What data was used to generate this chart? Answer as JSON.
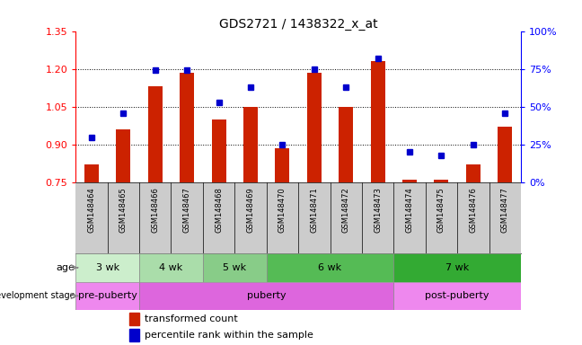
{
  "title": "GDS2721 / 1438322_x_at",
  "samples": [
    "GSM148464",
    "GSM148465",
    "GSM148466",
    "GSM148467",
    "GSM148468",
    "GSM148469",
    "GSM148470",
    "GSM148471",
    "GSM148472",
    "GSM148473",
    "GSM148474",
    "GSM148475",
    "GSM148476",
    "GSM148477"
  ],
  "bar_values": [
    0.822,
    0.962,
    1.13,
    1.185,
    1.0,
    1.05,
    0.885,
    1.185,
    1.05,
    1.23,
    0.762,
    0.762,
    0.822,
    0.97
  ],
  "percentile_values": [
    30,
    46,
    74,
    74,
    53,
    63,
    25,
    75,
    63,
    82,
    20,
    18,
    25,
    46
  ],
  "bar_bottom": 0.75,
  "ylim_left": [
    0.75,
    1.35
  ],
  "ylim_right": [
    0,
    100
  ],
  "yticks_left": [
    0.75,
    0.9,
    1.05,
    1.2,
    1.35
  ],
  "yticks_right": [
    0,
    25,
    50,
    75,
    100
  ],
  "ytick_labels_right": [
    "0%",
    "25%",
    "50%",
    "75%",
    "100%"
  ],
  "bar_color": "#cc2200",
  "percentile_color": "#0000cc",
  "age_groups": [
    {
      "label": "3 wk",
      "start": 0,
      "end": 2,
      "color": "#cceecc"
    },
    {
      "label": "4 wk",
      "start": 2,
      "end": 4,
      "color": "#aaddaa"
    },
    {
      "label": "5 wk",
      "start": 4,
      "end": 6,
      "color": "#88cc88"
    },
    {
      "label": "6 wk",
      "start": 6,
      "end": 10,
      "color": "#55bb55"
    },
    {
      "label": "7 wk",
      "start": 10,
      "end": 14,
      "color": "#33aa33"
    }
  ],
  "dev_groups": [
    {
      "label": "pre-puberty",
      "start": 0,
      "end": 2,
      "color": "#ee88ee"
    },
    {
      "label": "puberty",
      "start": 2,
      "end": 10,
      "color": "#dd66dd"
    },
    {
      "label": "post-puberty",
      "start": 10,
      "end": 14,
      "color": "#ee88ee"
    }
  ],
  "tick_label_bg": "#cccccc",
  "legend_bar_label": "transformed count",
  "legend_pct_label": "percentile rank within the sample"
}
